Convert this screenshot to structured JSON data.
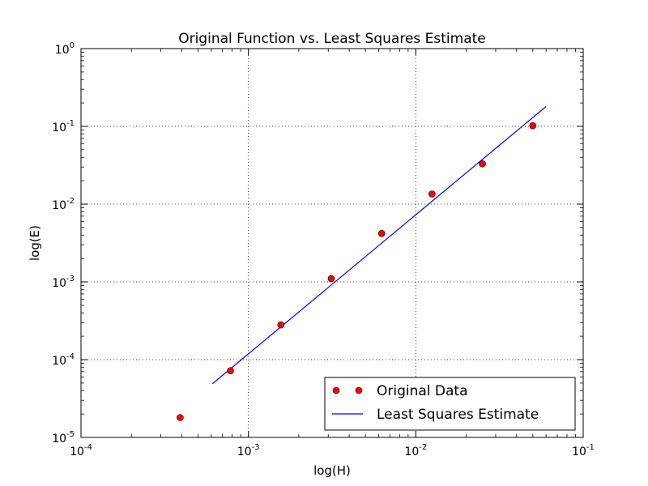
{
  "chart_data": {
    "type": "scatter",
    "title": "Original Function vs. Least Squares Estimate",
    "xlabel": "log(H)",
    "ylabel": "log(E)",
    "xscale": "log",
    "yscale": "log",
    "xlim": [
      0.0001,
      0.1
    ],
    "ylim": [
      1e-05,
      1
    ],
    "grid": true,
    "legend_position": "bottom-right",
    "x_ticks": [
      {
        "base": "10",
        "exp": "-4",
        "value": 0.0001
      },
      {
        "base": "10",
        "exp": "-3",
        "value": 0.001
      },
      {
        "base": "10",
        "exp": "-2",
        "value": 0.01
      },
      {
        "base": "10",
        "exp": "-1",
        "value": 0.1
      }
    ],
    "y_ticks": [
      {
        "base": "10",
        "exp": "-5",
        "value": 1e-05
      },
      {
        "base": "10",
        "exp": "-4",
        "value": 0.0001
      },
      {
        "base": "10",
        "exp": "-3",
        "value": 0.001
      },
      {
        "base": "10",
        "exp": "-2",
        "value": 0.01
      },
      {
        "base": "10",
        "exp": "-1",
        "value": 0.1
      },
      {
        "base": "10",
        "exp": "0",
        "value": 1
      }
    ],
    "series": [
      {
        "name": "Original Data",
        "kind": "markers",
        "color": "#ff0000",
        "x": [
          0.000391,
          0.000781,
          0.001563,
          0.003125,
          0.00625,
          0.0125,
          0.025,
          0.05
        ],
        "y": [
          1.8e-05,
          7.2e-05,
          0.00028,
          0.0011,
          0.0042,
          0.0135,
          0.033,
          0.102
        ]
      },
      {
        "name": "Least Squares Estimate",
        "kind": "line",
        "color": "#0000ff",
        "x": [
          0.00061,
          0.06
        ],
        "y": [
          4.9e-05,
          0.18
        ]
      }
    ]
  }
}
